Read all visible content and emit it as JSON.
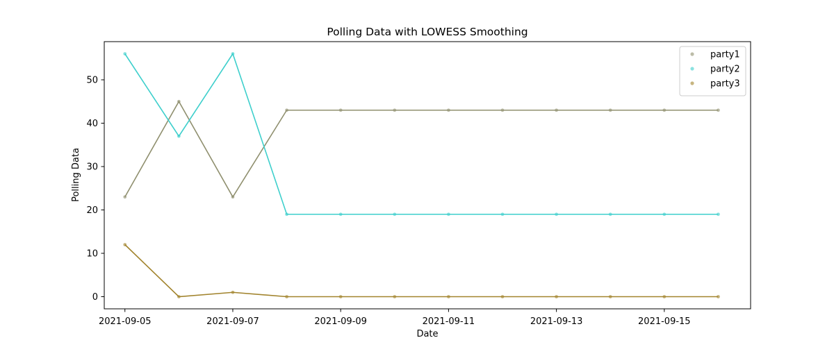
{
  "chart_data": {
    "type": "line",
    "title": "Polling Data with LOWESS Smoothing",
    "xlabel": "Date",
    "ylabel": "Polling Data",
    "x": [
      "2021-09-05",
      "2021-09-06",
      "2021-09-07",
      "2021-09-08",
      "2021-09-09",
      "2021-09-10",
      "2021-09-11",
      "2021-09-12",
      "2021-09-13",
      "2021-09-14",
      "2021-09-15",
      "2021-09-16"
    ],
    "xticks": [
      "2021-09-05",
      "2021-09-07",
      "2021-09-09",
      "2021-09-11",
      "2021-09-13",
      "2021-09-15"
    ],
    "xlim": [
      "2021-09-04T14:48",
      "2021-09-16T14:24"
    ],
    "ylim": [
      -2.8,
      58.8
    ],
    "yticks": [
      0,
      10,
      20,
      30,
      40,
      50
    ],
    "grid": false,
    "legend_position": "top-right",
    "markers": "scatter points with LOWESS line through them",
    "series": [
      {
        "name": "party1",
        "color": "#8f8f6e",
        "values": [
          23,
          45,
          23,
          43,
          43,
          43,
          43,
          43,
          43,
          43,
          43,
          43
        ]
      },
      {
        "name": "party2",
        "color": "#3ecfcc",
        "values": [
          56,
          37,
          56,
          19,
          19,
          19,
          19,
          19,
          19,
          19,
          19,
          19
        ]
      },
      {
        "name": "party3",
        "color": "#a1832c",
        "values": [
          12,
          0,
          1,
          0,
          0,
          0,
          0,
          0,
          0,
          0,
          0,
          0
        ]
      }
    ]
  }
}
